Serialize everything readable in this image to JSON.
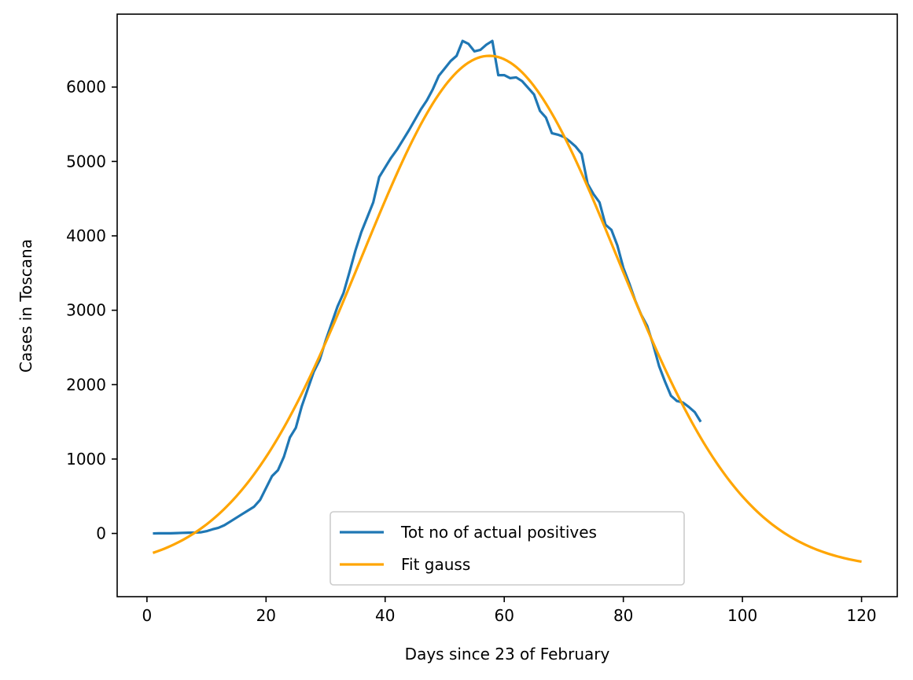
{
  "chart_data": {
    "type": "line",
    "title": "",
    "xlabel": "Days since 23 of February",
    "ylabel": "Cases in Toscana",
    "xlim": [
      -5,
      126
    ],
    "ylim": [
      -850,
      6980
    ],
    "xticks": [
      0,
      20,
      40,
      60,
      80,
      100,
      120
    ],
    "yticks": [
      0,
      1000,
      2000,
      3000,
      4000,
      5000,
      6000
    ],
    "grid": false,
    "legend_position": "lower center",
    "series": [
      {
        "name": "Tot no of actual positives",
        "color": "#1f77b4",
        "x": [
          1,
          2,
          3,
          4,
          5,
          6,
          7,
          8,
          9,
          10,
          11,
          12,
          13,
          14,
          15,
          16,
          17,
          18,
          19,
          20,
          21,
          22,
          23,
          24,
          25,
          26,
          27,
          28,
          29,
          30,
          31,
          32,
          33,
          34,
          35,
          36,
          37,
          38,
          39,
          40,
          41,
          42,
          43,
          44,
          45,
          46,
          47,
          48,
          49,
          50,
          51,
          52,
          53,
          54,
          55,
          56,
          57,
          58,
          59,
          60,
          61,
          62,
          63,
          64,
          65,
          66,
          67,
          68,
          69,
          70,
          71,
          72,
          73,
          74,
          75,
          76,
          77,
          78,
          79,
          80,
          81,
          82,
          83,
          84,
          85,
          86,
          87,
          88,
          89,
          90,
          91,
          92,
          93
        ],
        "y": [
          0,
          2,
          2,
          2,
          5,
          8,
          10,
          12,
          15,
          30,
          55,
          75,
          110,
          160,
          210,
          260,
          310,
          360,
          450,
          610,
          770,
          850,
          1030,
          1290,
          1420,
          1710,
          1940,
          2170,
          2330,
          2590,
          2820,
          3050,
          3230,
          3510,
          3800,
          4050,
          4250,
          4450,
          4790,
          4920,
          5050,
          5160,
          5290,
          5420,
          5560,
          5700,
          5820,
          5970,
          6150,
          6250,
          6350,
          6420,
          6620,
          6580,
          6480,
          6500,
          6570,
          6620,
          6160,
          6160,
          6120,
          6130,
          6080,
          5990,
          5900,
          5680,
          5590,
          5380,
          5360,
          5330,
          5270,
          5200,
          5100,
          4700,
          4560,
          4450,
          4150,
          4080,
          3870,
          3570,
          3360,
          3130,
          2940,
          2790,
          2540,
          2250,
          2040,
          1850,
          1780,
          1760,
          1700,
          1630,
          1500
        ]
      },
      {
        "name": "Fit gauss",
        "color": "#ffa500",
        "model": {
          "type": "gaussian",
          "amplitude": 6900,
          "mean": 57.5,
          "sigma": 21.5,
          "offset": -480
        },
        "x_range": [
          1,
          120
        ]
      }
    ]
  }
}
